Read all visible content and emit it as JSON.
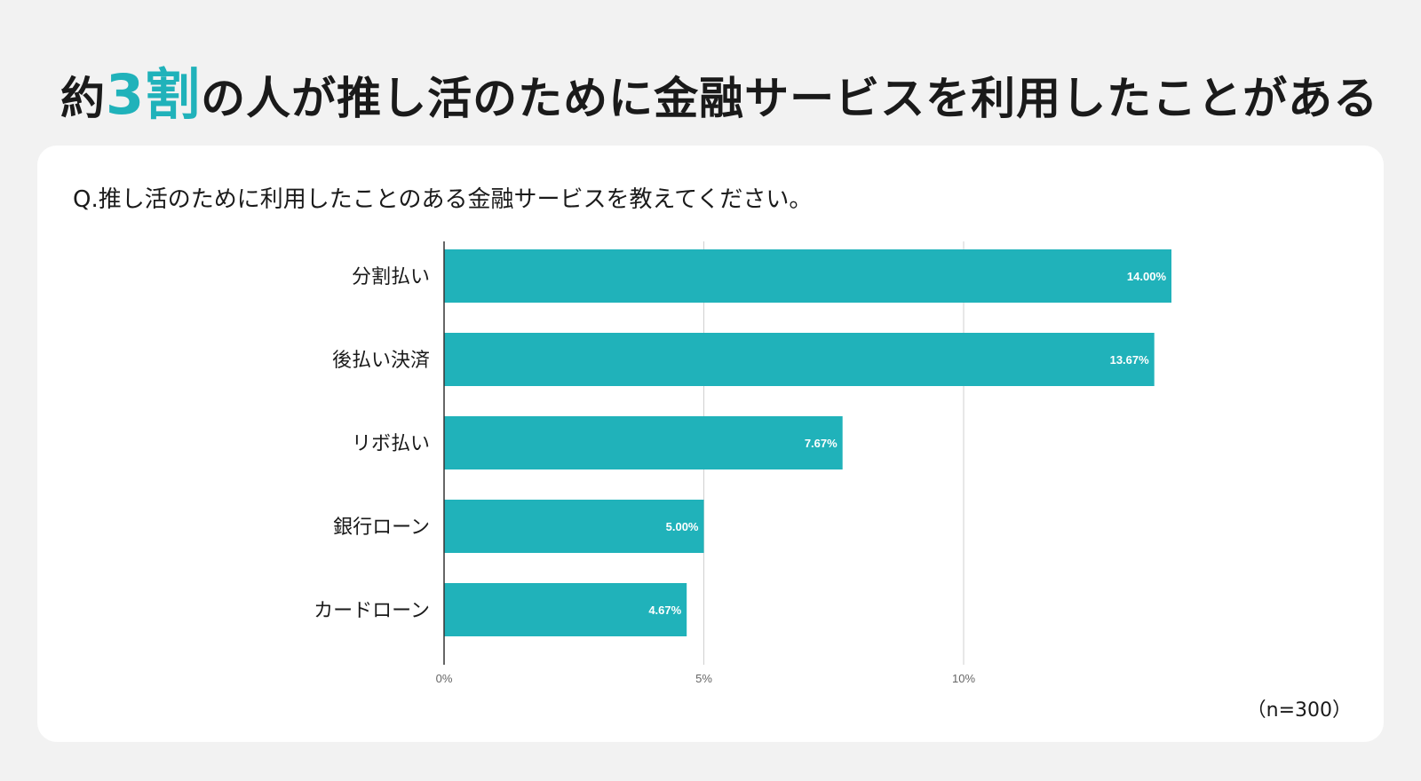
{
  "headline": {
    "prefix": "約",
    "highlight": "3割",
    "suffix": "の人が推し活のために金融サービスを利用したことがある"
  },
  "colors": {
    "accent": "#20b2ba",
    "bar": "#20b2ba",
    "grid": "#d0d0d0",
    "axis": "#333333"
  },
  "question": "Q.推し活のために利用したことのある金融サービスを教えてください。",
  "sample_size": "（n=300）",
  "chart_data": {
    "type": "bar",
    "orientation": "horizontal",
    "title": "",
    "xlabel": "",
    "ylabel": "",
    "xlim": [
      0,
      15
    ],
    "grid": true,
    "categories": [
      "分割払い",
      "後払い決済",
      "リボ払い",
      "銀行ローン",
      "カードローン"
    ],
    "values": [
      14.0,
      13.67,
      7.67,
      5.0,
      4.67
    ],
    "value_labels": [
      "14.00%",
      "13.67%",
      "7.67%",
      "5.00%",
      "4.67%"
    ],
    "ticks": [
      0,
      5,
      10
    ],
    "tick_labels": [
      "0%",
      "5%",
      "10%"
    ]
  }
}
